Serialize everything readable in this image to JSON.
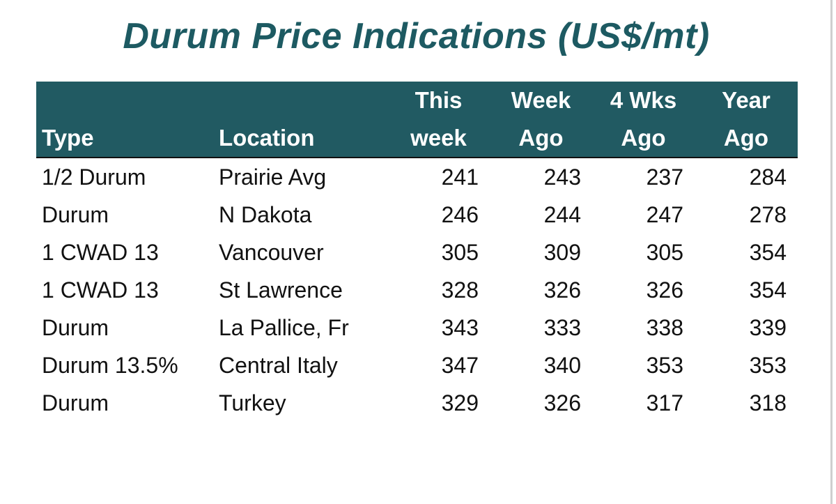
{
  "chart_data": {
    "type": "table",
    "title": "Durum Price Indications (US$/mt)",
    "columns": [
      {
        "line1": "",
        "line2": "Type"
      },
      {
        "line1": "",
        "line2": "Location"
      },
      {
        "line1": "This",
        "line2": "week"
      },
      {
        "line1": "Week",
        "line2": "Ago"
      },
      {
        "line1": "4 Wks",
        "line2": "Ago"
      },
      {
        "line1": "Year",
        "line2": "Ago"
      }
    ],
    "rows": [
      [
        "1/2 Durum",
        "Prairie Avg",
        "241",
        "243",
        "237",
        "284"
      ],
      [
        "Durum",
        "N Dakota",
        "246",
        "244",
        "247",
        "278"
      ],
      [
        "1 CWAD 13",
        "Vancouver",
        "305",
        "309",
        "305",
        "354"
      ],
      [
        "1 CWAD 13",
        "St Lawrence",
        "328",
        "326",
        "326",
        "354"
      ],
      [
        "Durum",
        "La Pallice, Fr",
        "343",
        "333",
        "338",
        "339"
      ],
      [
        "Durum 13.5%",
        "Central Italy",
        "347",
        "340",
        "353",
        "353"
      ],
      [
        "Durum",
        "Turkey",
        "329",
        "326",
        "317",
        "318"
      ]
    ]
  },
  "colors": {
    "header_bg": "#215a62",
    "title": "#1d5a62",
    "header_text": "#ffffff",
    "body_text": "#111111"
  }
}
